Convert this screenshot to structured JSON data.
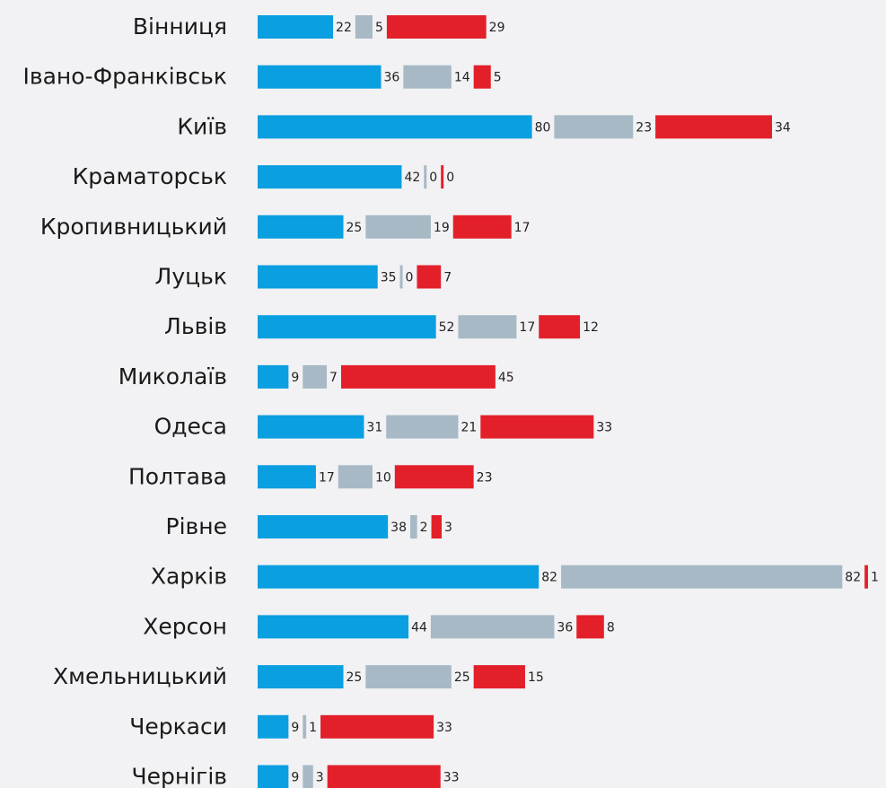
{
  "chart_data": {
    "type": "bar",
    "orientation": "horizontal",
    "stacked": true,
    "categories": [
      "Вінниця",
      "Івано-Франківськ",
      "Київ",
      "Краматорськ",
      "Кропивницький",
      "Луцьк",
      "Львів",
      "Миколаїв",
      "Одеса",
      "Полтава",
      "Рівне",
      "Харків",
      "Херсон",
      "Хмельницький",
      "Черкаси",
      "Чернігів"
    ],
    "series": [
      {
        "color": "#0a9fe0",
        "values": [
          22,
          36,
          80,
          42,
          25,
          35,
          52,
          9,
          31,
          17,
          38,
          82,
          44,
          25,
          9,
          9
        ]
      },
      {
        "color": "#a7b9c5",
        "values": [
          5,
          14,
          23,
          0,
          19,
          0,
          17,
          7,
          21,
          10,
          2,
          82,
          36,
          25,
          1,
          3
        ]
      },
      {
        "color": "#e3202a",
        "values": [
          29,
          5,
          34,
          0,
          17,
          7,
          12,
          45,
          33,
          23,
          3,
          1,
          8,
          15,
          33,
          33
        ]
      }
    ]
  }
}
